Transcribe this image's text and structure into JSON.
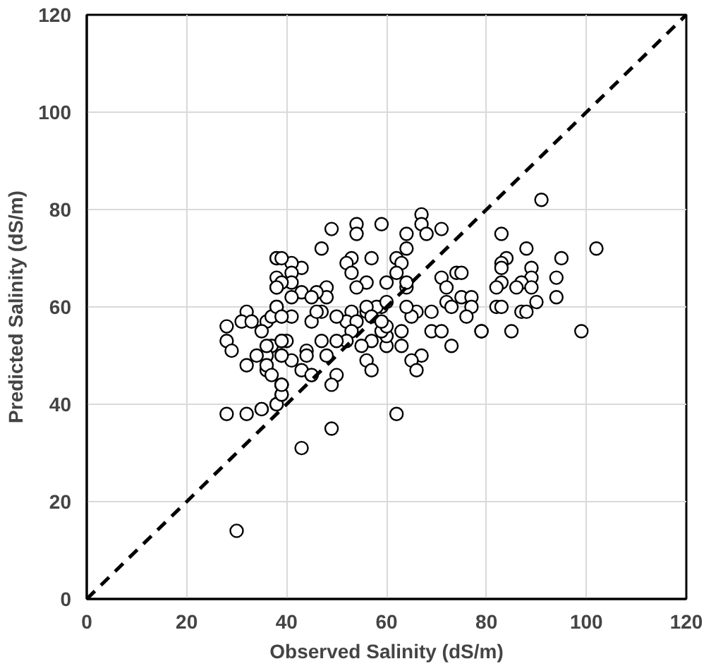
{
  "chart_data": {
    "type": "scatter",
    "xlabel": "Observed Salinity (dS/m)",
    "ylabel": "Predicted Salinity (dS/m)",
    "xlim": [
      0,
      120
    ],
    "ylim": [
      0,
      120
    ],
    "xticks": [
      0,
      20,
      40,
      60,
      80,
      100,
      120
    ],
    "yticks": [
      0,
      20,
      40,
      60,
      80,
      100,
      120
    ],
    "grid": true,
    "series": [
      {
        "marker": "circle",
        "color": "#000000",
        "x": [
          67,
          67,
          68,
          71,
          64,
          59,
          54,
          54,
          49,
          47,
          64,
          62,
          63,
          57,
          53,
          52,
          53,
          56,
          54,
          60,
          62,
          64,
          64,
          71,
          74,
          75,
          72,
          75,
          77,
          72,
          73,
          77,
          76,
          79,
          69,
          66,
          65,
          64,
          69,
          71,
          73,
          67,
          65,
          66,
          63,
          63,
          60,
          60,
          59,
          60,
          59,
          58,
          60,
          56,
          56,
          57,
          59,
          57,
          55,
          56,
          57,
          53,
          52,
          54,
          53,
          52,
          50,
          47,
          45,
          46,
          47,
          50,
          48,
          44,
          44,
          45,
          43,
          50,
          49,
          49,
          62,
          43,
          48,
          48,
          46,
          43,
          45,
          43,
          41,
          38,
          41,
          38,
          38,
          41,
          41,
          38,
          41,
          36,
          39,
          37,
          40,
          39,
          41,
          36,
          36,
          39,
          39,
          38,
          35,
          45,
          91,
          83,
          84,
          83,
          83,
          88,
          95,
          102,
          89,
          94,
          83,
          82,
          89,
          87,
          86,
          89,
          90,
          94,
          82,
          83,
          87,
          88,
          85,
          99,
          79,
          28,
          28,
          29,
          32,
          32,
          31,
          33,
          35,
          34,
          36,
          36,
          37,
          37,
          38,
          38,
          39,
          39,
          38,
          39,
          39,
          39,
          39,
          28,
          32,
          35,
          30,
          38,
          39,
          39
        ],
        "values": [
          79,
          77,
          75,
          76,
          75,
          77,
          77,
          75,
          76,
          72,
          72,
          70,
          69,
          70,
          70,
          69,
          67,
          65,
          64,
          65,
          67,
          64,
          65,
          66,
          67,
          67,
          64,
          62,
          62,
          61,
          60,
          60,
          58,
          55,
          59,
          59,
          58,
          60,
          55,
          55,
          52,
          50,
          49,
          47,
          52,
          55,
          52,
          54,
          55,
          56,
          60,
          60,
          61,
          59,
          60,
          58,
          57,
          53,
          52,
          49,
          47,
          59,
          57,
          57,
          55,
          53,
          58,
          59,
          57,
          59,
          53,
          53,
          50,
          51,
          50,
          46,
          47,
          46,
          44,
          35,
          38,
          31,
          64,
          62,
          63,
          63,
          62,
          68,
          69,
          70,
          67,
          66,
          64,
          65,
          62,
          60,
          58,
          57,
          53,
          52,
          53,
          50,
          49,
          50,
          47,
          44,
          42,
          40,
          39,
          46,
          82,
          75,
          70,
          69,
          68,
          72,
          70,
          72,
          68,
          66,
          65,
          64,
          66,
          65,
          64,
          64,
          61,
          62,
          60,
          60,
          59,
          59,
          55,
          55,
          55,
          56,
          53,
          51,
          48,
          59,
          57,
          57,
          55,
          50,
          52,
          48,
          46,
          58,
          60,
          70,
          70,
          65,
          64,
          58,
          53,
          50,
          44,
          38,
          38,
          39,
          14,
          40,
          42,
          44
        ]
      },
      {
        "type": "line",
        "line_style": "dashed",
        "color": "#000000",
        "x": [
          0,
          120
        ],
        "values": [
          0,
          120
        ]
      }
    ]
  }
}
